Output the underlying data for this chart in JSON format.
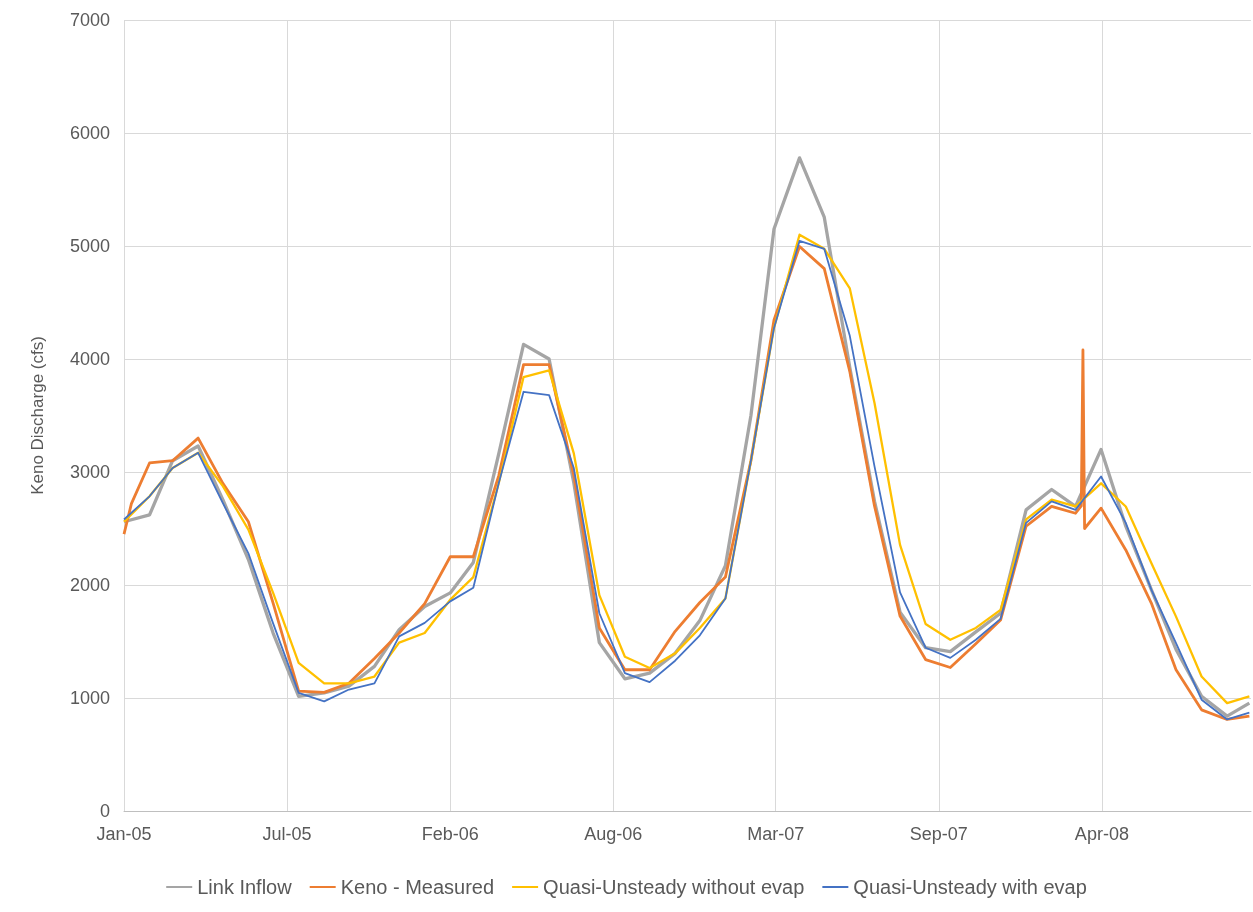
{
  "chart_data": {
    "type": "line",
    "ylabel": "Keno Discharge (cfs)",
    "x": [
      "2005-01-01",
      "2005-02-01",
      "2005-03-01",
      "2005-04-01",
      "2005-05-01",
      "2005-06-01",
      "2005-07-01",
      "2005-08-01",
      "2005-09-01",
      "2005-10-01",
      "2005-11-01",
      "2005-12-01",
      "2006-01-01",
      "2006-02-01",
      "2006-03-01",
      "2006-04-01",
      "2006-05-01",
      "2006-06-01",
      "2006-07-01",
      "2006-08-01",
      "2006-09-01",
      "2006-10-01",
      "2006-11-01",
      "2006-12-01",
      "2007-01-01",
      "2007-02-01",
      "2007-03-01",
      "2007-04-01",
      "2007-05-01",
      "2007-06-01",
      "2007-07-01",
      "2007-08-01",
      "2007-09-01",
      "2007-10-01",
      "2007-11-01",
      "2007-12-01",
      "2008-01-01",
      "2008-02-01",
      "2008-03-01",
      "2008-04-01",
      "2008-05-01",
      "2008-06-01",
      "2008-07-01",
      "2008-08-01",
      "2008-09-01",
      "2008-09-28"
    ],
    "series": [
      {
        "name": "Link Inflow",
        "color": "#a5a5a5",
        "values": [
          2560,
          2620,
          3100,
          3230,
          2755,
          2225,
          1575,
          1015,
          1045,
          1105,
          1280,
          1605,
          1810,
          1930,
          2200,
          3165,
          4130,
          4000,
          2905,
          1490,
          1170,
          1220,
          1395,
          1685,
          2170,
          3500,
          5150,
          5780,
          5255,
          3925,
          2740,
          1760,
          1445,
          1410,
          1585,
          1750,
          2665,
          2845,
          2695,
          3200,
          2520,
          1960,
          1430,
          1015,
          840,
          955
        ]
      },
      {
        "name": "Keno - Measured",
        "color": "#ed7d31",
        "x": [
          "2005-01-01",
          "2005-01-10",
          "2005-02-01",
          "2005-03-01",
          "2005-04-01",
          "2005-05-01",
          "2005-06-01",
          "2005-07-01",
          "2005-08-01",
          "2005-09-01",
          "2005-10-01",
          "2005-11-01",
          "2005-12-01",
          "2006-01-01",
          "2006-02-01",
          "2006-03-01",
          "2006-04-01",
          "2006-05-01",
          "2006-06-01",
          "2006-07-01",
          "2006-08-01",
          "2006-09-01",
          "2006-10-01",
          "2006-11-01",
          "2006-12-01",
          "2007-01-01",
          "2007-02-01",
          "2007-03-01",
          "2007-04-01",
          "2007-05-01",
          "2007-06-01",
          "2007-07-01",
          "2007-08-01",
          "2007-09-01",
          "2007-10-01",
          "2007-11-01",
          "2007-12-01",
          "2008-01-01",
          "2008-02-01",
          "2008-03-01",
          "2008-03-08",
          "2008-03-10",
          "2008-03-12",
          "2008-04-01",
          "2008-05-01",
          "2008-06-01",
          "2008-07-01",
          "2008-08-01",
          "2008-09-01",
          "2008-09-28"
        ],
        "values": [
          2450,
          2720,
          3080,
          3100,
          3300,
          2900,
          2560,
          1840,
          1060,
          1050,
          1130,
          1350,
          1575,
          1835,
          2250,
          2250,
          2970,
          3950,
          3950,
          2970,
          1620,
          1250,
          1250,
          1590,
          1845,
          2070,
          3100,
          4345,
          4995,
          4800,
          3890,
          2700,
          1725,
          1340,
          1270,
          1480,
          1690,
          2520,
          2695,
          2635,
          2700,
          4080,
          2500,
          2680,
          2310,
          1840,
          1250,
          895,
          810,
          840
        ]
      },
      {
        "name": "Quasi-Unsteady without evap",
        "color": "#ffc000",
        "values": [
          2560,
          2785,
          3035,
          3170,
          2875,
          2490,
          1930,
          1310,
          1130,
          1130,
          1190,
          1490,
          1575,
          1870,
          2070,
          2905,
          3840,
          3900,
          3165,
          1910,
          1365,
          1265,
          1395,
          1620,
          1880,
          3100,
          4275,
          5100,
          4975,
          4625,
          3610,
          2355,
          1655,
          1515,
          1620,
          1780,
          2580,
          2755,
          2695,
          2900,
          2695,
          2195,
          1720,
          1190,
          955,
          1015
        ]
      },
      {
        "name": "Quasi-Unsteady with evap",
        "color": "#4472c4",
        "values": [
          2580,
          2785,
          3035,
          3170,
          2725,
          2280,
          1660,
          1045,
          970,
          1075,
          1130,
          1545,
          1665,
          1855,
          1975,
          2905,
          3710,
          3680,
          3035,
          1750,
          1220,
          1140,
          1330,
          1555,
          1880,
          3100,
          4275,
          5045,
          4975,
          4205,
          3050,
          1935,
          1445,
          1355,
          1515,
          1700,
          2550,
          2740,
          2665,
          2960,
          2550,
          1960,
          1485,
          985,
          810,
          870
        ]
      }
    ],
    "xlim": [
      "2005-01-01",
      "2008-09-30"
    ],
    "xticks": [
      {
        "value": "2005-01-01",
        "label": "Jan-05"
      },
      {
        "value": "2005-07-18",
        "label": "Jul-05"
      },
      {
        "value": "2006-02-01",
        "label": "Feb-06"
      },
      {
        "value": "2006-08-18",
        "label": "Aug-06"
      },
      {
        "value": "2007-03-03",
        "label": "Mar-07"
      },
      {
        "value": "2007-09-17",
        "label": "Sep-07"
      },
      {
        "value": "2008-04-02",
        "label": "Apr-08"
      }
    ],
    "ylim": [
      0,
      7000
    ],
    "yticks": [
      0,
      1000,
      2000,
      3000,
      4000,
      5000,
      6000,
      7000
    ],
    "grid": true,
    "legend": "bottom"
  }
}
